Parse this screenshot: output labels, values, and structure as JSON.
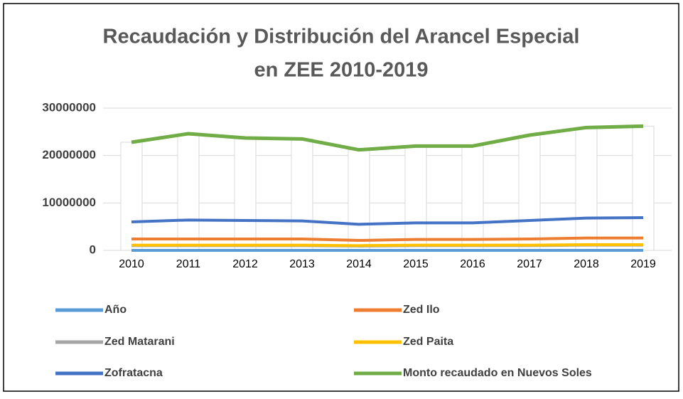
{
  "chart_data": {
    "type": "line",
    "title": [
      "Recaudación y Distribución del Arancel Especial",
      "en ZEE 2010-2019"
    ],
    "categories": [
      "2010",
      "2011",
      "2012",
      "2013",
      "2014",
      "2015",
      "2016",
      "2017",
      "2018",
      "2019"
    ],
    "ylim": [
      0,
      30000000
    ],
    "yticks": [
      0,
      10000000,
      20000000,
      30000000
    ],
    "grid": true,
    "bar_series": 5,
    "bar_color": "#ffffff",
    "series": [
      {
        "name": "Año",
        "color": "#5b9bd5",
        "values": [
          2010,
          2011,
          2012,
          2013,
          2014,
          2015,
          2016,
          2017,
          2018,
          2019
        ]
      },
      {
        "name": "Zed Ilo",
        "color": "#ed7d31",
        "values": [
          2400000,
          2400000,
          2400000,
          2400000,
          2100000,
          2300000,
          2300000,
          2400000,
          2600000,
          2600000
        ]
      },
      {
        "name": "Zed Matarani",
        "color": "#a5a5a5",
        "values": [
          1000000,
          1000000,
          1000000,
          1000000,
          900000,
          1000000,
          1000000,
          1000000,
          1100000,
          1100000
        ]
      },
      {
        "name": "Zed Paita",
        "color": "#ffc000",
        "values": [
          1100000,
          1100000,
          1100000,
          1100000,
          1000000,
          1100000,
          1100000,
          1100000,
          1200000,
          1200000
        ]
      },
      {
        "name": "Zofratacna",
        "color": "#4472c4",
        "values": [
          6000000,
          6400000,
          6300000,
          6200000,
          5500000,
          5800000,
          5800000,
          6300000,
          6800000,
          6900000
        ]
      },
      {
        "name": "Monto recaudado en Nuevos Soles",
        "color": "#70ad47",
        "values": [
          22800000,
          24600000,
          23700000,
          23500000,
          21200000,
          22000000,
          22000000,
          24300000,
          25900000,
          26200000
        ]
      }
    ]
  }
}
